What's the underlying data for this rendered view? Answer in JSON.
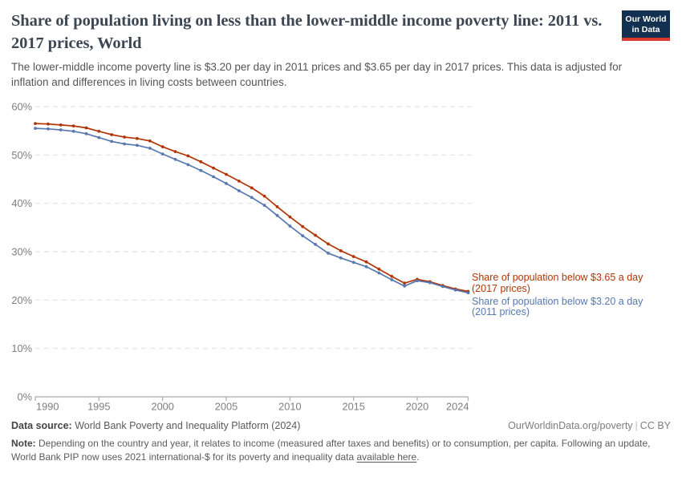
{
  "header": {
    "title": "Share of population living on less than the lower-middle income poverty line: 2011 vs. 2017 prices, World",
    "subtitle": "The lower-middle income poverty line is $3.20 per day in 2011 prices and $3.65 per day in 2017 prices. This data is adjusted for inflation and differences in living costs between countries.",
    "logo": {
      "line1": "Our World",
      "line2": "in Data"
    }
  },
  "chart_data": {
    "type": "line",
    "title": "Share of population living on less than the lower-middle income poverty line: 2011 vs. 2017 prices, World",
    "subtitle": "The lower-middle income poverty line is $3.20 per day in 2011 prices and $3.65 per day in 2017 prices. This data is adjusted for inflation and differences in living costs between countries.",
    "x": [
      1990,
      1991,
      1992,
      1993,
      1994,
      1995,
      1996,
      1997,
      1998,
      1999,
      2000,
      2001,
      2002,
      2003,
      2004,
      2005,
      2006,
      2007,
      2008,
      2009,
      2010,
      2011,
      2012,
      2013,
      2014,
      2015,
      2016,
      2017,
      2018,
      2019,
      2020,
      2021,
      2022,
      2023,
      2024
    ],
    "series": [
      {
        "name": "Share of population below $3.65 a day (2017 prices)",
        "label_line1": "Share of population below $3.65 a day",
        "label_line2": "(2017 prices)",
        "color": "#B13507",
        "values": [
          56.5,
          56.4,
          56.2,
          56.0,
          55.6,
          54.9,
          54.2,
          53.7,
          53.4,
          52.9,
          51.7,
          50.7,
          49.8,
          48.6,
          47.3,
          46.0,
          44.6,
          43.2,
          41.5,
          39.3,
          37.2,
          35.2,
          33.4,
          31.6,
          30.2,
          29.0,
          27.9,
          26.4,
          24.9,
          23.5,
          24.3,
          23.8,
          23.0,
          22.3,
          21.8
        ]
      },
      {
        "name": "Share of population below $3.20 a day (2011 prices)",
        "label_line1": "Share of population below $3.20 a day",
        "label_line2": "(2011 prices)",
        "color": "#5778B0",
        "values": [
          55.5,
          55.4,
          55.2,
          54.9,
          54.4,
          53.6,
          52.8,
          52.3,
          52.0,
          51.4,
          50.2,
          49.1,
          48.0,
          46.8,
          45.5,
          44.1,
          42.6,
          41.2,
          39.6,
          37.5,
          35.3,
          33.3,
          31.5,
          29.7,
          28.7,
          27.8,
          26.9,
          25.6,
          24.2,
          22.9,
          24.0,
          23.6,
          22.8,
          22.1,
          21.5
        ]
      }
    ],
    "xlim": [
      1990,
      2024
    ],
    "ylim": [
      0,
      60
    ],
    "xticks": [
      1990,
      1995,
      2000,
      2005,
      2010,
      2015,
      2020,
      2024
    ],
    "yticks": [
      0,
      10,
      20,
      30,
      40,
      50,
      60
    ],
    "ytick_suffix": "%",
    "grid": "horizontal-dashed",
    "legend_position": "right-of-line-end"
  },
  "footer": {
    "source_label": "Data source:",
    "source_value": "World Bank Poverty and Inequality Platform (2024)",
    "credit_url": "OurWorldinData.org/poverty",
    "credit_separator": "|",
    "credit_license": "CC BY",
    "note_label": "Note:",
    "note_text": "Depending on the country and year, it relates to income (measured after taxes and benefits) or to consumption, per capita. Following an update, World Bank PIP now uses 2021 international-$ for its poverty and inequality data",
    "note_link": "available here",
    "note_suffix": "."
  },
  "colors": {
    "series_red": "#B13507",
    "series_blue": "#5778B0",
    "grid": "#E2E2E2",
    "axis": "#ABABAB",
    "axis_text": "#7E7E7E",
    "title": "#3D4653",
    "body_text": "#555555",
    "logo_bg": "#12304F",
    "logo_accent": "#D93A2D"
  }
}
